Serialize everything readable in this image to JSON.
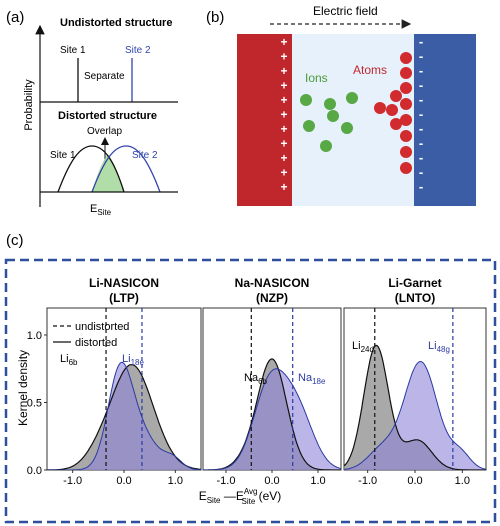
{
  "panel_a": {
    "label": "(a)",
    "undistorted_title": "Undistorted structure",
    "site1": "Site 1",
    "site2": "Site 2",
    "separate": "Separate",
    "ylabel": "Probability",
    "distorted_title": "Distorted structure",
    "overlap": "Overlap",
    "site1_b": "Site 1",
    "site2_b": "Site 2",
    "xlabel_main": "E",
    "xlabel_sub": "Site"
  },
  "panel_b": {
    "label": "(b)",
    "field_label": "Electric field",
    "ions_label": "Ions",
    "atoms_label": "Atoms",
    "plus": "+",
    "minus": "-",
    "colors": {
      "left_plate": "#c0272d",
      "right_plate": "#3a5da6",
      "medium": "#e6f1fb",
      "ion": "#58a845",
      "atom": "#d12a2f"
    }
  },
  "panel_c": {
    "label": "(c)",
    "legend": {
      "undistorted": "undistorted",
      "distorted": "distorted"
    },
    "ylabel": "Kernel density",
    "xlabel": {
      "e": "E",
      "site_sub": "Site",
      "dash": " —E",
      "avg_sup": "Avg",
      "site_sub2": "Site",
      "unit": " (eV)"
    },
    "yticks": [
      "0.0",
      "0.5",
      "1.0"
    ],
    "xticks": [
      "-1.0",
      "0.0",
      "1.0"
    ],
    "colors": {
      "grey_fill": "#8c8c8c",
      "purple_fill": "#8f86d8",
      "blue_line": "#2b3aa3",
      "frame": "#2f4f9e"
    },
    "plots": [
      {
        "title1": "Li-NASICON",
        "title2": "(LTP)",
        "site_a": "Li",
        "site_a_sub": "6b",
        "site_b": "Li",
        "site_b_sub": "18e"
      },
      {
        "title1": "Na-NASICON",
        "title2": "(NZP)",
        "site_a": "Na",
        "site_a_sub": "6b",
        "site_b": "Na",
        "site_b_sub": "18e"
      },
      {
        "title1": "Li-Garnet",
        "title2": "(LNTO)",
        "site_a": "Li",
        "site_a_sub": "24d",
        "site_b": "Li",
        "site_b_sub": "48g"
      }
    ]
  }
}
